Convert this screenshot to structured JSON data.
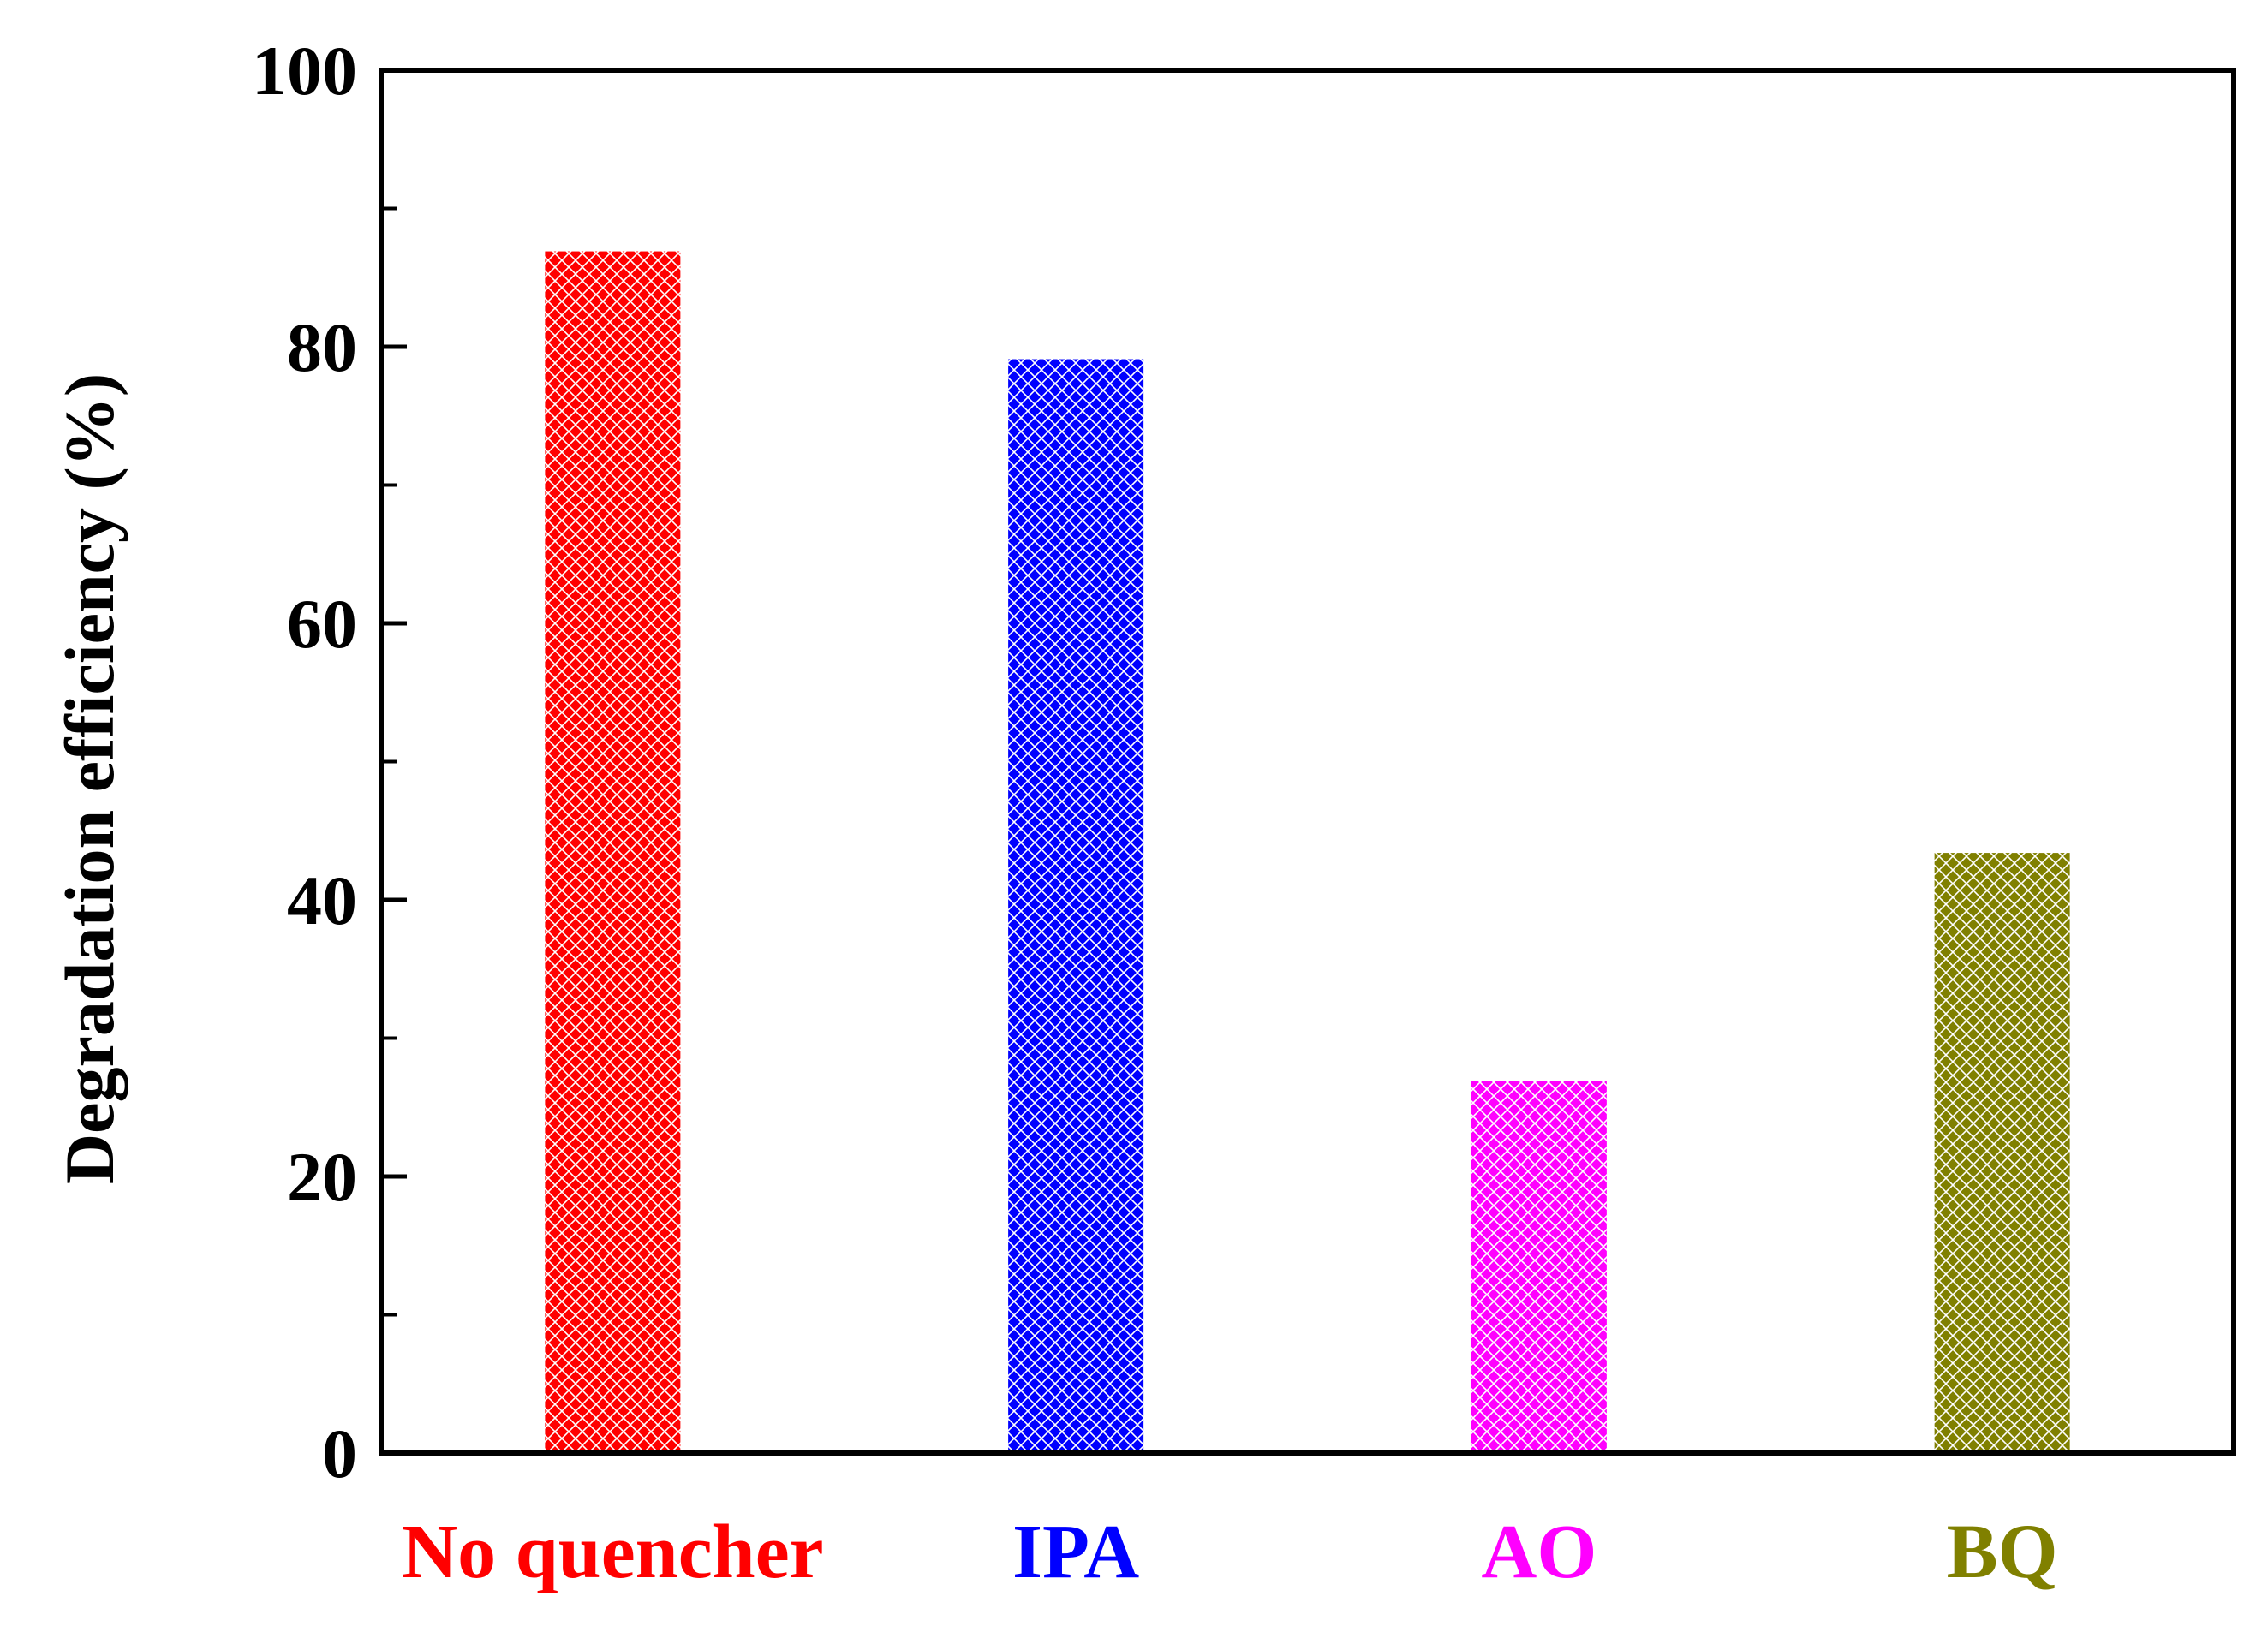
{
  "chart_data": {
    "type": "bar",
    "title": "",
    "xlabel": "",
    "ylabel": "Degradation efficiency (%)",
    "ylim": [
      0,
      100
    ],
    "yticks": [
      0,
      20,
      40,
      60,
      80,
      100
    ],
    "yticks_minor": [
      10,
      30,
      50,
      70,
      90
    ],
    "grid": false,
    "legend": "none",
    "bar_pattern": "crosshatch",
    "categories": [
      "No quencher",
      "IPA",
      "AO",
      "BQ"
    ],
    "values": [
      86.9,
      79.1,
      26.9,
      43.4
    ],
    "colors": [
      "#ff0000",
      "#0000ff",
      "#ff00ff",
      "#808000"
    ]
  }
}
